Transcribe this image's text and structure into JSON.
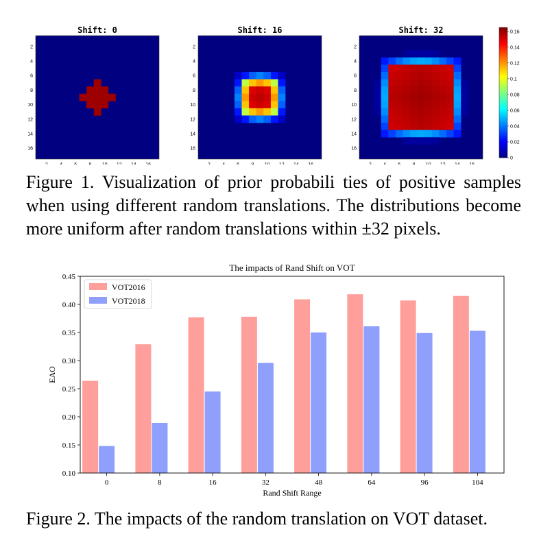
{
  "figure1": {
    "panels": [
      {
        "title": "Shift: 0",
        "shift": 0
      },
      {
        "title": "Shift: 16",
        "shift": 16
      },
      {
        "title": "Shift: 32",
        "shift": 32
      }
    ],
    "tick_labels": [
      "2",
      "4",
      "6",
      "8",
      "10",
      "12",
      "14",
      "16"
    ],
    "colorbar_ticks": [
      "0",
      "0.02",
      "0.04",
      "0.06",
      "0.08",
      "0.1",
      "0.12",
      "0.14",
      "0.16"
    ],
    "colorbar_range": [
      0,
      0.165
    ],
    "colormap": "jet",
    "caption": "Figure 1. Visualization of prior probabili ties of positive samples when using different random translations. The distributions become more uniform after random translations within ±32 pixels."
  },
  "chart_data": {
    "type": "bar",
    "title": "The impacts of Rand Shift on VOT",
    "xlabel": "Rand Shift Range",
    "ylabel": "EAO",
    "categories": [
      "0",
      "8",
      "16",
      "32",
      "48",
      "64",
      "96",
      "104"
    ],
    "series": [
      {
        "name": "VOT2016",
        "color": "#ff9f9b",
        "values": [
          0.264,
          0.329,
          0.377,
          0.378,
          0.409,
          0.418,
          0.407,
          0.415
        ]
      },
      {
        "name": "VOT2018",
        "color": "#8fa0fc",
        "values": [
          0.148,
          0.189,
          0.245,
          0.296,
          0.35,
          0.361,
          0.349,
          0.353
        ]
      }
    ],
    "ylim": [
      0.1,
      0.45
    ],
    "yticks": [
      "0.10",
      "0.15",
      "0.20",
      "0.25",
      "0.30",
      "0.35",
      "0.40",
      "0.45"
    ],
    "grid": false,
    "legend": "top-left"
  },
  "figure2": {
    "caption": "Figure 2. The impacts of the random translation on VOT dataset."
  }
}
